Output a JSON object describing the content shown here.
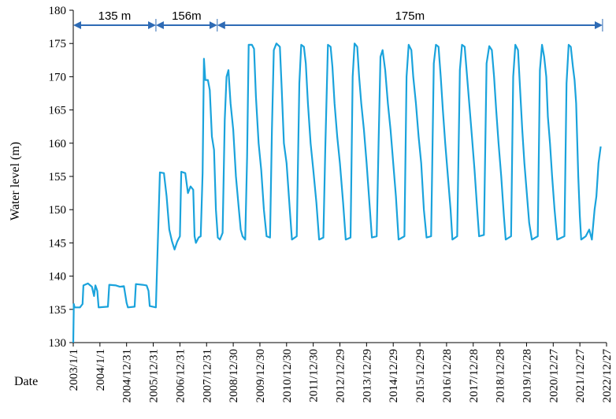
{
  "chart_data": {
    "type": "line",
    "title": "",
    "ylabel": "Water level (m)",
    "xlabel": "Date",
    "ylim": [
      130,
      180
    ],
    "yticks": [
      130,
      135,
      140,
      145,
      150,
      155,
      160,
      165,
      170,
      175,
      180
    ],
    "xticks": [
      "2003/1/1",
      "2004/1/1",
      "2004/12/31",
      "2005/12/31",
      "2006/12/31",
      "2007/12/31",
      "2008/12/30",
      "2009/12/30",
      "2010/12/30",
      "2011/12/30",
      "2012/12/29",
      "2013/12/29",
      "2014/12/29",
      "2015/12/29",
      "2016/12/28",
      "2017/12/28",
      "2018/12/28",
      "2019/12/28",
      "2020/12/27",
      "2021/12/27",
      "2022/12/27"
    ],
    "grid": false,
    "line_color": "#1aa3dc",
    "arrow_color": "#2e6bb5",
    "phases": [
      {
        "label": "135 m",
        "from": 0.0,
        "to": 3.1
      },
      {
        "label": "156m",
        "from": 3.1,
        "to": 5.4
      },
      {
        "label": "175m",
        "from": 5.4,
        "to": 19.85
      }
    ],
    "series": [
      {
        "x_unit": "years since 2003/1/1",
        "points": [
          [
            0.0,
            130
          ],
          [
            0.02,
            135.8
          ],
          [
            0.05,
            135.3
          ],
          [
            0.25,
            135.3
          ],
          [
            0.35,
            135.8
          ],
          [
            0.38,
            138.6
          ],
          [
            0.55,
            138.9
          ],
          [
            0.7,
            138.4
          ],
          [
            0.78,
            137.0
          ],
          [
            0.83,
            138.6
          ],
          [
            0.9,
            137.8
          ],
          [
            0.95,
            135.3
          ],
          [
            1.3,
            135.4
          ],
          [
            1.35,
            138.7
          ],
          [
            1.6,
            138.6
          ],
          [
            1.75,
            138.4
          ],
          [
            1.9,
            138.5
          ],
          [
            2.0,
            136.0
          ],
          [
            2.05,
            135.3
          ],
          [
            2.3,
            135.4
          ],
          [
            2.35,
            138.8
          ],
          [
            2.6,
            138.7
          ],
          [
            2.75,
            138.6
          ],
          [
            2.82,
            137.8
          ],
          [
            2.87,
            135.5
          ],
          [
            3.1,
            135.3
          ],
          [
            3.25,
            155.6
          ],
          [
            3.4,
            155.5
          ],
          [
            3.5,
            152.0
          ],
          [
            3.6,
            147.0
          ],
          [
            3.7,
            145.3
          ],
          [
            3.8,
            144.0
          ],
          [
            3.9,
            145.2
          ],
          [
            4.0,
            146.0
          ],
          [
            4.05,
            155.7
          ],
          [
            4.2,
            155.5
          ],
          [
            4.3,
            152.5
          ],
          [
            4.4,
            153.5
          ],
          [
            4.5,
            153.0
          ],
          [
            4.55,
            146.0
          ],
          [
            4.6,
            145.0
          ],
          [
            4.7,
            145.8
          ],
          [
            4.78,
            146.0
          ],
          [
            4.85,
            155.5
          ],
          [
            4.9,
            172.7
          ],
          [
            4.95,
            169.5
          ],
          [
            5.05,
            169.5
          ],
          [
            5.12,
            168.0
          ],
          [
            5.2,
            161.0
          ],
          [
            5.28,
            159.0
          ],
          [
            5.35,
            150.0
          ],
          [
            5.42,
            145.8
          ],
          [
            5.5,
            145.5
          ],
          [
            5.6,
            146.5
          ],
          [
            5.68,
            163.5
          ],
          [
            5.75,
            170.0
          ],
          [
            5.82,
            171.0
          ],
          [
            5.9,
            166.0
          ],
          [
            6.0,
            162.0
          ],
          [
            6.1,
            155.0
          ],
          [
            6.2,
            150.5
          ],
          [
            6.28,
            147.0
          ],
          [
            6.35,
            146.0
          ],
          [
            6.45,
            145.5
          ],
          [
            6.52,
            158.0
          ],
          [
            6.58,
            174.8
          ],
          [
            6.7,
            174.8
          ],
          [
            6.78,
            174.2
          ],
          [
            6.85,
            167.0
          ],
          [
            6.95,
            160.0
          ],
          [
            7.05,
            156.0
          ],
          [
            7.15,
            150.0
          ],
          [
            7.25,
            146.0
          ],
          [
            7.38,
            145.8
          ],
          [
            7.45,
            162.0
          ],
          [
            7.52,
            174.0
          ],
          [
            7.62,
            175.0
          ],
          [
            7.75,
            174.5
          ],
          [
            7.82,
            168.0
          ],
          [
            7.9,
            160.0
          ],
          [
            8.0,
            157.0
          ],
          [
            8.12,
            150.0
          ],
          [
            8.2,
            145.5
          ],
          [
            8.38,
            146.0
          ],
          [
            8.48,
            169.0
          ],
          [
            8.55,
            174.8
          ],
          [
            8.65,
            174.5
          ],
          [
            8.72,
            172.0
          ],
          [
            8.8,
            166.0
          ],
          [
            8.9,
            160.0
          ],
          [
            9.0,
            156.0
          ],
          [
            9.12,
            151.0
          ],
          [
            9.22,
            145.5
          ],
          [
            9.38,
            145.8
          ],
          [
            9.45,
            159.0
          ],
          [
            9.55,
            174.8
          ],
          [
            9.65,
            174.5
          ],
          [
            9.72,
            171.5
          ],
          [
            9.8,
            166.0
          ],
          [
            9.9,
            161.0
          ],
          [
            10.0,
            157.0
          ],
          [
            10.12,
            151.0
          ],
          [
            10.22,
            145.5
          ],
          [
            10.4,
            145.8
          ],
          [
            10.48,
            170.0
          ],
          [
            10.55,
            175.0
          ],
          [
            10.65,
            174.5
          ],
          [
            10.72,
            170.0
          ],
          [
            10.8,
            166.0
          ],
          [
            10.9,
            162.0
          ],
          [
            11.0,
            157.0
          ],
          [
            11.1,
            151.5
          ],
          [
            11.2,
            145.8
          ],
          [
            11.38,
            146.0
          ],
          [
            11.45,
            160.0
          ],
          [
            11.52,
            173.0
          ],
          [
            11.6,
            174.0
          ],
          [
            11.7,
            171.0
          ],
          [
            11.8,
            166.0
          ],
          [
            11.9,
            162.0
          ],
          [
            12.0,
            157.0
          ],
          [
            12.1,
            152.0
          ],
          [
            12.2,
            145.5
          ],
          [
            12.42,
            146.0
          ],
          [
            12.5,
            170.0
          ],
          [
            12.58,
            174.8
          ],
          [
            12.68,
            174.0
          ],
          [
            12.75,
            170.0
          ],
          [
            12.85,
            166.0
          ],
          [
            12.95,
            161.0
          ],
          [
            13.05,
            157.0
          ],
          [
            13.15,
            150.0
          ],
          [
            13.25,
            145.8
          ],
          [
            13.42,
            146.0
          ],
          [
            13.52,
            172.0
          ],
          [
            13.6,
            174.8
          ],
          [
            13.7,
            174.5
          ],
          [
            13.78,
            170.0
          ],
          [
            13.86,
            165.0
          ],
          [
            13.95,
            160.0
          ],
          [
            14.05,
            155.0
          ],
          [
            14.15,
            150.0
          ],
          [
            14.22,
            145.5
          ],
          [
            14.4,
            146.0
          ],
          [
            14.5,
            171.0
          ],
          [
            14.58,
            174.8
          ],
          [
            14.68,
            174.5
          ],
          [
            14.75,
            171.0
          ],
          [
            14.85,
            166.0
          ],
          [
            14.95,
            161.0
          ],
          [
            15.05,
            156.0
          ],
          [
            15.15,
            150.0
          ],
          [
            15.22,
            146.0
          ],
          [
            15.4,
            146.2
          ],
          [
            15.5,
            172.0
          ],
          [
            15.6,
            174.6
          ],
          [
            15.7,
            174.0
          ],
          [
            15.78,
            170.0
          ],
          [
            15.86,
            165.0
          ],
          [
            15.95,
            160.0
          ],
          [
            16.05,
            155.0
          ],
          [
            16.15,
            149.0
          ],
          [
            16.22,
            145.5
          ],
          [
            16.42,
            146.0
          ],
          [
            16.5,
            170.0
          ],
          [
            16.58,
            174.8
          ],
          [
            16.68,
            174.0
          ],
          [
            16.76,
            168.0
          ],
          [
            16.84,
            162.0
          ],
          [
            16.92,
            157.0
          ],
          [
            17.02,
            152.0
          ],
          [
            17.1,
            148.0
          ],
          [
            17.2,
            145.5
          ],
          [
            17.42,
            146.0
          ],
          [
            17.5,
            171.0
          ],
          [
            17.58,
            174.8
          ],
          [
            17.66,
            173.0
          ],
          [
            17.74,
            170.0
          ],
          [
            17.8,
            164.0
          ],
          [
            17.88,
            160.0
          ],
          [
            17.96,
            155.0
          ],
          [
            18.05,
            150.0
          ],
          [
            18.15,
            145.5
          ],
          [
            18.42,
            146.0
          ],
          [
            18.5,
            169.0
          ],
          [
            18.58,
            174.8
          ],
          [
            18.66,
            174.5
          ],
          [
            18.74,
            171.5
          ],
          [
            18.8,
            169.5
          ],
          [
            18.86,
            166.0
          ],
          [
            18.94,
            155.0
          ],
          [
            19.0,
            149.0
          ],
          [
            19.05,
            145.5
          ],
          [
            19.22,
            146.0
          ],
          [
            19.35,
            147.0
          ],
          [
            19.45,
            145.5
          ],
          [
            19.55,
            150.0
          ],
          [
            19.62,
            152.0
          ],
          [
            19.7,
            157.0
          ],
          [
            19.78,
            159.5
          ]
        ]
      }
    ]
  }
}
